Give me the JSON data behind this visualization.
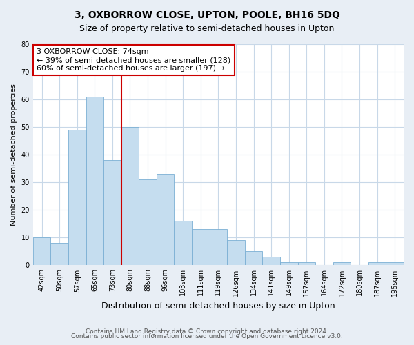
{
  "title": "3, OXBORROW CLOSE, UPTON, POOLE, BH16 5DQ",
  "subtitle": "Size of property relative to semi-detached houses in Upton",
  "xlabel": "Distribution of semi-detached houses by size in Upton",
  "ylabel": "Number of semi-detached properties",
  "categories": [
    "42sqm",
    "50sqm",
    "57sqm",
    "65sqm",
    "73sqm",
    "80sqm",
    "88sqm",
    "96sqm",
    "103sqm",
    "111sqm",
    "119sqm",
    "126sqm",
    "134sqm",
    "141sqm",
    "149sqm",
    "157sqm",
    "164sqm",
    "172sqm",
    "180sqm",
    "187sqm",
    "195sqm"
  ],
  "values": [
    10,
    8,
    49,
    61,
    38,
    50,
    31,
    33,
    16,
    13,
    13,
    9,
    5,
    3,
    1,
    1,
    0,
    1,
    0,
    1,
    1
  ],
  "bar_color": "#c5ddef",
  "bar_edge_color": "#7bafd4",
  "vline_index": 4,
  "vline_color": "#cc0000",
  "annotation_line1": "3 OXBORROW CLOSE: 74sqm",
  "annotation_line2": "← 39% of semi-detached houses are smaller (128)",
  "annotation_line3": "60% of semi-detached houses are larger (197) →",
  "annotation_box_facecolor": "#ffffff",
  "annotation_box_edgecolor": "#cc0000",
  "ylim": [
    0,
    80
  ],
  "yticks": [
    0,
    10,
    20,
    30,
    40,
    50,
    60,
    70,
    80
  ],
  "footer_line1": "Contains HM Land Registry data © Crown copyright and database right 2024.",
  "footer_line2": "Contains public sector information licensed under the Open Government Licence v3.0.",
  "fig_facecolor": "#e8eef5",
  "plot_facecolor": "#ffffff",
  "grid_color": "#c8d8e8",
  "title_fontsize": 10,
  "subtitle_fontsize": 9,
  "xlabel_fontsize": 9,
  "ylabel_fontsize": 8,
  "tick_fontsize": 7,
  "annotation_fontsize": 8,
  "footer_fontsize": 6.5
}
